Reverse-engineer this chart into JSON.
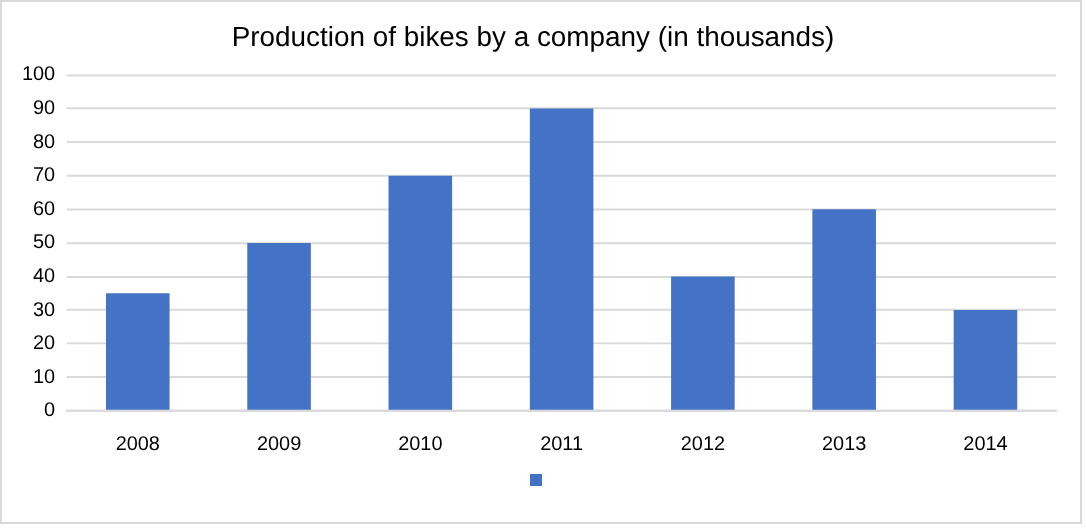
{
  "chart_data": {
    "type": "bar",
    "title": "Production of bikes by a company (in thousands)",
    "categories": [
      "2008",
      "2009",
      "2010",
      "2011",
      "2012",
      "2013",
      "2014"
    ],
    "series": [
      {
        "color": "#4472c4",
        "values": [
          35,
          50,
          70,
          90,
          40,
          60,
          30
        ]
      }
    ],
    "ylim": [
      0,
      100
    ],
    "yticks": [
      0,
      10,
      20,
      30,
      40,
      50,
      60,
      70,
      80,
      90,
      100
    ],
    "grid": "y"
  }
}
